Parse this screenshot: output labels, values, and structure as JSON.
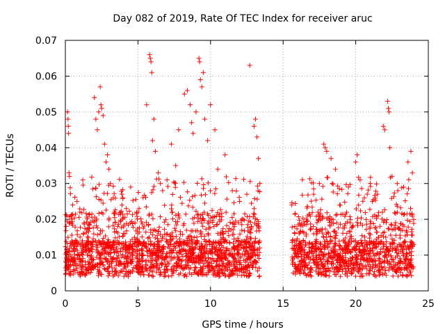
{
  "chart_data": {
    "type": "scatter",
    "title": "Day 082 of 2019, Rate Of TEC Index for receiver aruc",
    "xlabel": "GPS time / hours",
    "ylabel": "ROTI / TECUs",
    "xlim": [
      0,
      25
    ],
    "ylim": [
      0,
      0.07
    ],
    "x_ticks": [
      "0",
      "5",
      "10",
      "15",
      "20",
      "25"
    ],
    "y_ticks": [
      "0",
      "0.01",
      "0.02",
      "0.03",
      "0.04",
      "0.05",
      "0.06",
      "0.07"
    ],
    "x_tick_values": [
      0,
      5,
      10,
      15,
      20,
      25
    ],
    "y_tick_values": [
      0,
      0.01,
      0.02,
      0.03,
      0.04,
      0.05,
      0.06,
      0.07
    ],
    "grid": true,
    "marker": "+",
    "color": "#ff0000",
    "series": [
      {
        "points": [
          [
            0.05,
            0.018
          ],
          [
            0.1,
            0.021
          ],
          [
            0.15,
            0.05
          ],
          [
            0.18,
            0.048
          ],
          [
            0.2,
            0.046
          ],
          [
            0.22,
            0.044
          ],
          [
            0.25,
            0.033
          ],
          [
            0.28,
            0.032
          ],
          [
            0.3,
            0.012
          ],
          [
            0.4,
            0.009
          ],
          [
            0.5,
            0.024
          ],
          [
            0.6,
            0.011
          ],
          [
            0.8,
            0.025
          ],
          [
            1.0,
            0.022
          ],
          [
            1.2,
            0.031
          ],
          [
            1.5,
            0.014
          ],
          [
            2.0,
            0.054
          ],
          [
            2.1,
            0.048
          ],
          [
            2.2,
            0.045
          ],
          [
            2.3,
            0.05
          ],
          [
            2.4,
            0.057
          ],
          [
            2.45,
            0.052
          ],
          [
            2.5,
            0.051
          ],
          [
            2.6,
            0.049
          ],
          [
            2.7,
            0.041
          ],
          [
            2.8,
            0.036
          ],
          [
            2.9,
            0.038
          ],
          [
            3.0,
            0.034
          ],
          [
            3.1,
            0.03
          ],
          [
            3.3,
            0.026
          ],
          [
            3.6,
            0.018
          ],
          [
            3.9,
            0.027
          ],
          [
            4.2,
            0.023
          ],
          [
            4.5,
            0.029
          ],
          [
            4.8,
            0.019
          ],
          [
            5.6,
            0.052
          ],
          [
            5.8,
            0.066
          ],
          [
            5.85,
            0.065
          ],
          [
            5.9,
            0.064
          ],
          [
            5.95,
            0.061
          ],
          [
            6.0,
            0.042
          ],
          [
            6.1,
            0.048
          ],
          [
            6.2,
            0.039
          ],
          [
            6.4,
            0.033
          ],
          [
            6.7,
            0.028
          ],
          [
            7.0,
            0.031
          ],
          [
            7.3,
            0.041
          ],
          [
            7.6,
            0.035
          ],
          [
            7.8,
            0.045
          ],
          [
            8.2,
            0.055
          ],
          [
            8.4,
            0.056
          ],
          [
            8.6,
            0.052
          ],
          [
            8.7,
            0.047
          ],
          [
            8.8,
            0.044
          ],
          [
            9.0,
            0.05
          ],
          [
            9.2,
            0.065
          ],
          [
            9.25,
            0.064
          ],
          [
            9.3,
            0.059
          ],
          [
            9.4,
            0.057
          ],
          [
            9.5,
            0.061
          ],
          [
            9.6,
            0.048
          ],
          [
            9.8,
            0.042
          ],
          [
            10.0,
            0.052
          ],
          [
            10.3,
            0.045
          ],
          [
            10.5,
            0.034
          ],
          [
            11.0,
            0.038
          ],
          [
            11.5,
            0.028
          ],
          [
            12.0,
            0.025
          ],
          [
            12.5,
            0.027
          ],
          [
            12.7,
            0.063
          ],
          [
            13.0,
            0.046
          ],
          [
            13.1,
            0.048
          ],
          [
            13.2,
            0.043
          ],
          [
            13.3,
            0.037
          ],
          [
            13.4,
            0.03
          ],
          [
            15.6,
            0.024
          ],
          [
            15.8,
            0.018
          ],
          [
            16.1,
            0.016
          ],
          [
            16.6,
            0.02
          ],
          [
            17.1,
            0.027
          ],
          [
            17.5,
            0.03
          ],
          [
            17.8,
            0.041
          ],
          [
            17.9,
            0.04
          ],
          [
            18.0,
            0.039
          ],
          [
            18.3,
            0.037
          ],
          [
            18.6,
            0.034
          ],
          [
            18.9,
            0.024
          ],
          [
            19.5,
            0.029
          ],
          [
            20.0,
            0.036
          ],
          [
            20.1,
            0.038
          ],
          [
            20.3,
            0.031
          ],
          [
            21.0,
            0.03
          ],
          [
            21.5,
            0.027
          ],
          [
            21.9,
            0.046
          ],
          [
            22.0,
            0.045
          ],
          [
            22.2,
            0.053
          ],
          [
            22.25,
            0.051
          ],
          [
            22.3,
            0.05
          ],
          [
            22.35,
            0.04
          ],
          [
            22.5,
            0.032
          ],
          [
            22.9,
            0.028
          ],
          [
            23.3,
            0.029
          ],
          [
            23.6,
            0.036
          ],
          [
            23.8,
            0.039
          ],
          [
            23.9,
            0.033
          ]
        ]
      }
    ]
  }
}
